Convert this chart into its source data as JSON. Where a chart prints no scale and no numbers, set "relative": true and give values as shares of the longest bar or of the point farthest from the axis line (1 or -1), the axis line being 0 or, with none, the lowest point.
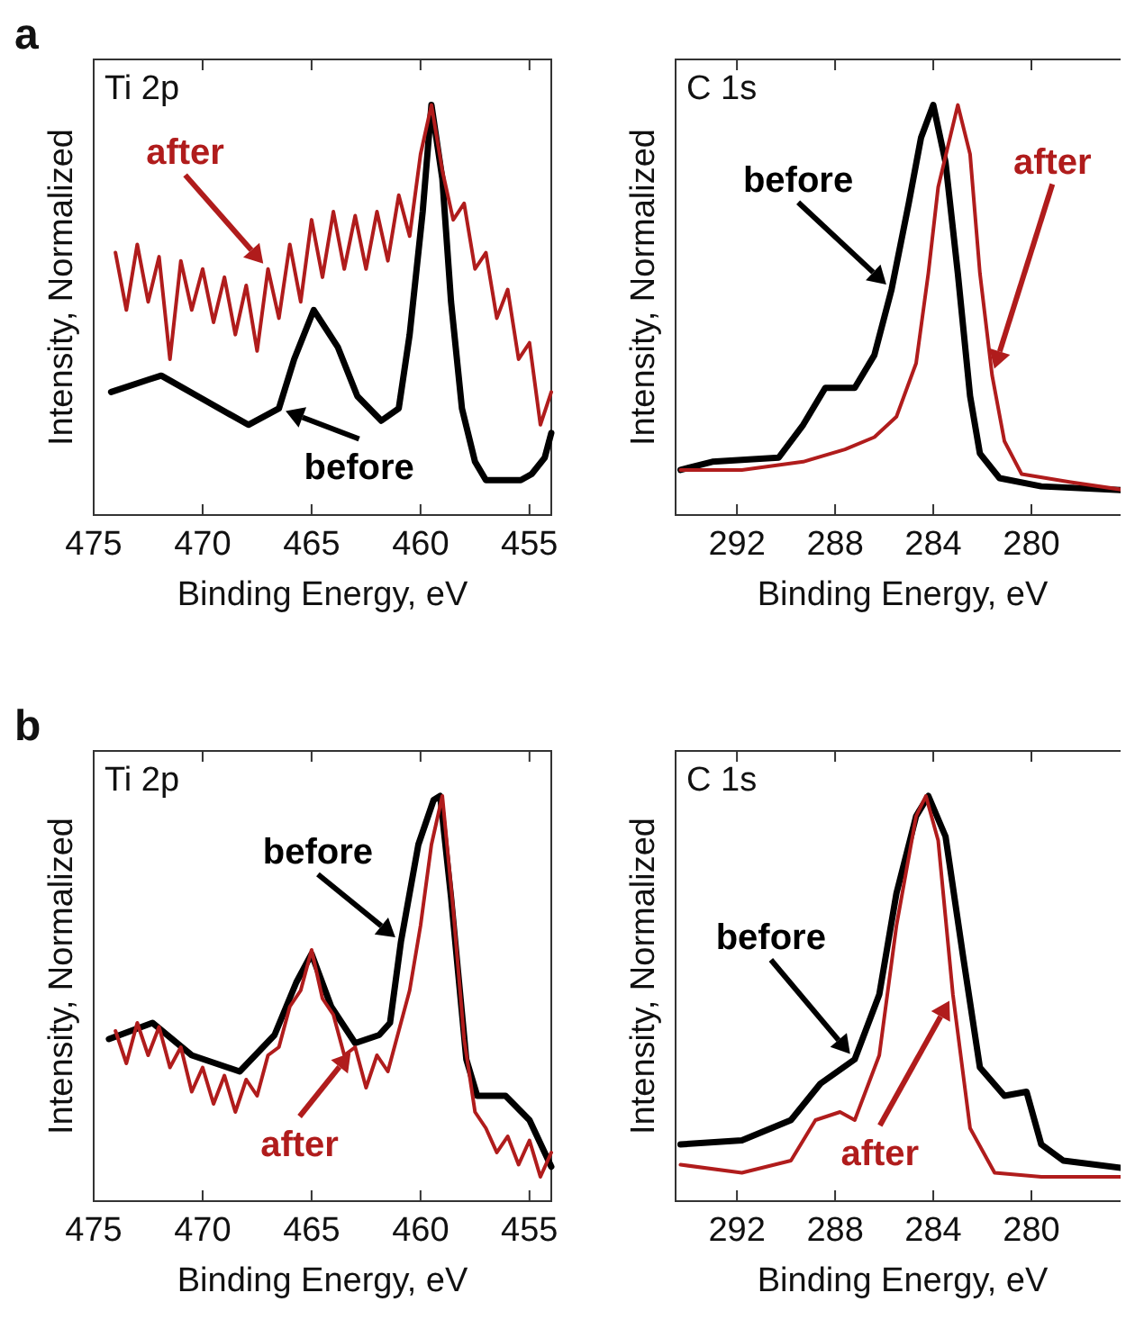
{
  "chart_data": [
    {
      "type": "line",
      "title": "Ti 2p",
      "xlabel": "Binding Energy, eV",
      "ylabel": "Intensity, Normalized",
      "annotations": [
        "a"
      ],
      "relative": true,
      "xlim": [
        475,
        454
      ],
      "xticks": [
        475,
        470,
        465,
        460,
        455
      ],
      "series": [
        {
          "name": "before",
          "color": "#000000",
          "x": [
            474.2,
            472.5,
            471.9,
            469.9,
            467.9,
            466.5,
            465.8,
            464.9,
            463.8,
            462.9,
            461.8,
            461.0,
            460.5,
            459.9,
            459.5,
            459.0,
            458.6,
            458.1,
            457.5,
            457.0,
            455.4,
            454.9,
            454.3,
            454.0
          ],
          "values": [
            0.3,
            0.33,
            0.34,
            0.28,
            0.22,
            0.26,
            0.38,
            0.5,
            0.41,
            0.29,
            0.23,
            0.26,
            0.44,
            0.74,
            1.0,
            0.82,
            0.52,
            0.26,
            0.13,
            0.085,
            0.085,
            0.1,
            0.14,
            0.2
          ]
        },
        {
          "name": "after",
          "color": "#b01c1c",
          "x": [
            474,
            473.5,
            473,
            472.5,
            472,
            471.5,
            471,
            470.5,
            470,
            469.5,
            469,
            468.5,
            468,
            467.5,
            467,
            466.5,
            466,
            465.5,
            465,
            464.5,
            464,
            463.5,
            463,
            462.5,
            462,
            461.5,
            461,
            460.5,
            460,
            459.5,
            459,
            458.5,
            458,
            457.5,
            457,
            456.5,
            456,
            455.5,
            455,
            454.5,
            454
          ],
          "values": [
            0.64,
            0.5,
            0.66,
            0.52,
            0.63,
            0.38,
            0.62,
            0.5,
            0.6,
            0.47,
            0.58,
            0.44,
            0.56,
            0.4,
            0.6,
            0.48,
            0.66,
            0.52,
            0.72,
            0.58,
            0.74,
            0.6,
            0.73,
            0.6,
            0.74,
            0.62,
            0.78,
            0.68,
            0.88,
            1.0,
            0.84,
            0.72,
            0.76,
            0.6,
            0.64,
            0.48,
            0.55,
            0.38,
            0.42,
            0.22,
            0.3
          ]
        }
      ]
    },
    {
      "type": "line",
      "title": "C 1s",
      "xlabel": "Binding Energy, eV",
      "ylabel": "Intensity, Normalized",
      "relative": true,
      "xlim": [
        294.5,
        276
      ],
      "xticks": [
        292,
        288,
        284,
        280
      ],
      "series": [
        {
          "name": "before",
          "color": "#000000",
          "x": [
            294.3,
            293.0,
            290.3,
            289.3,
            288.4,
            287.2,
            286.4,
            285.7,
            285.0,
            284.5,
            284.0,
            283.5,
            283.0,
            282.5,
            282.1,
            281.3,
            279.6,
            276.1
          ],
          "values": [
            0.11,
            0.13,
            0.14,
            0.22,
            0.31,
            0.31,
            0.39,
            0.55,
            0.76,
            0.92,
            1.0,
            0.86,
            0.59,
            0.29,
            0.15,
            0.09,
            0.07,
            0.06
          ]
        },
        {
          "name": "after",
          "color": "#b01c1c",
          "x": [
            294.3,
            291.8,
            289.3,
            287.6,
            286.4,
            285.5,
            284.7,
            284.2,
            283.8,
            283.0,
            282.5,
            282.1,
            281.6,
            281.1,
            280.4,
            278.4,
            276.1
          ],
          "values": [
            0.11,
            0.11,
            0.13,
            0.16,
            0.19,
            0.24,
            0.37,
            0.59,
            0.8,
            1.0,
            0.88,
            0.59,
            0.34,
            0.18,
            0.1,
            0.08,
            0.06
          ]
        }
      ]
    },
    {
      "type": "line",
      "title": "Ti 2p",
      "xlabel": "Binding Energy, eV",
      "ylabel": "Intensity, Normalized",
      "annotations": [
        "b"
      ],
      "relative": true,
      "xlim": [
        475,
        454
      ],
      "xticks": [
        475,
        470,
        465,
        460,
        455
      ],
      "series": [
        {
          "name": "before",
          "color": "#000000",
          "x": [
            474.3,
            472.3,
            470.5,
            468.3,
            466.7,
            465.7,
            465.0,
            464.1,
            463.0,
            461.9,
            461.4,
            460.9,
            460.1,
            459.4,
            459.1,
            458.6,
            457.9,
            457.4,
            456.1,
            455.0,
            454.0
          ],
          "values": [
            0.4,
            0.44,
            0.36,
            0.32,
            0.41,
            0.54,
            0.61,
            0.48,
            0.39,
            0.41,
            0.44,
            0.64,
            0.88,
            0.99,
            1.0,
            0.75,
            0.35,
            0.26,
            0.26,
            0.2,
            0.085
          ]
        },
        {
          "name": "after",
          "color": "#b01c1c",
          "x": [
            474,
            473.5,
            473,
            472.5,
            472,
            471.5,
            471,
            470.5,
            470,
            469.5,
            469,
            468.5,
            468,
            467.5,
            467,
            466.5,
            466,
            465.5,
            465,
            464.5,
            464,
            463.5,
            463,
            462.5,
            462,
            461.5,
            461,
            460.5,
            460,
            459.5,
            459,
            458.5,
            458,
            457.5,
            457,
            456.5,
            456,
            455.5,
            455,
            454.5,
            454
          ],
          "values": [
            0.42,
            0.34,
            0.44,
            0.36,
            0.43,
            0.33,
            0.38,
            0.27,
            0.33,
            0.24,
            0.31,
            0.22,
            0.3,
            0.26,
            0.36,
            0.38,
            0.48,
            0.52,
            0.62,
            0.5,
            0.46,
            0.36,
            0.38,
            0.28,
            0.36,
            0.32,
            0.42,
            0.52,
            0.68,
            0.88,
            1.0,
            0.72,
            0.4,
            0.22,
            0.18,
            0.12,
            0.16,
            0.09,
            0.15,
            0.06,
            0.12
          ]
        }
      ]
    },
    {
      "type": "line",
      "title": "C 1s",
      "xlabel": "Binding Energy, eV",
      "ylabel": "Intensity, Normalized",
      "relative": true,
      "xlim": [
        294.5,
        276
      ],
      "xticks": [
        292,
        288,
        284,
        280
      ],
      "series": [
        {
          "name": "before",
          "color": "#000000",
          "x": [
            294.3,
            291.8,
            289.8,
            288.6,
            287.2,
            286.2,
            285.5,
            284.7,
            284.2,
            283.5,
            282.8,
            282.1,
            281.1,
            280.2,
            279.6,
            278.7,
            276.1
          ],
          "values": [
            0.14,
            0.15,
            0.2,
            0.29,
            0.35,
            0.51,
            0.76,
            0.95,
            1.0,
            0.9,
            0.61,
            0.33,
            0.26,
            0.27,
            0.14,
            0.1,
            0.08
          ]
        },
        {
          "name": "after",
          "color": "#b01c1c",
          "x": [
            294.3,
            291.8,
            289.8,
            288.8,
            287.8,
            287.2,
            286.2,
            285.5,
            284.7,
            284.3,
            283.8,
            283.2,
            282.5,
            281.5,
            279.6,
            276.1
          ],
          "values": [
            0.09,
            0.07,
            0.1,
            0.2,
            0.22,
            0.2,
            0.36,
            0.68,
            0.95,
            1.0,
            0.89,
            0.51,
            0.18,
            0.07,
            0.06,
            0.06
          ]
        }
      ]
    }
  ]
}
